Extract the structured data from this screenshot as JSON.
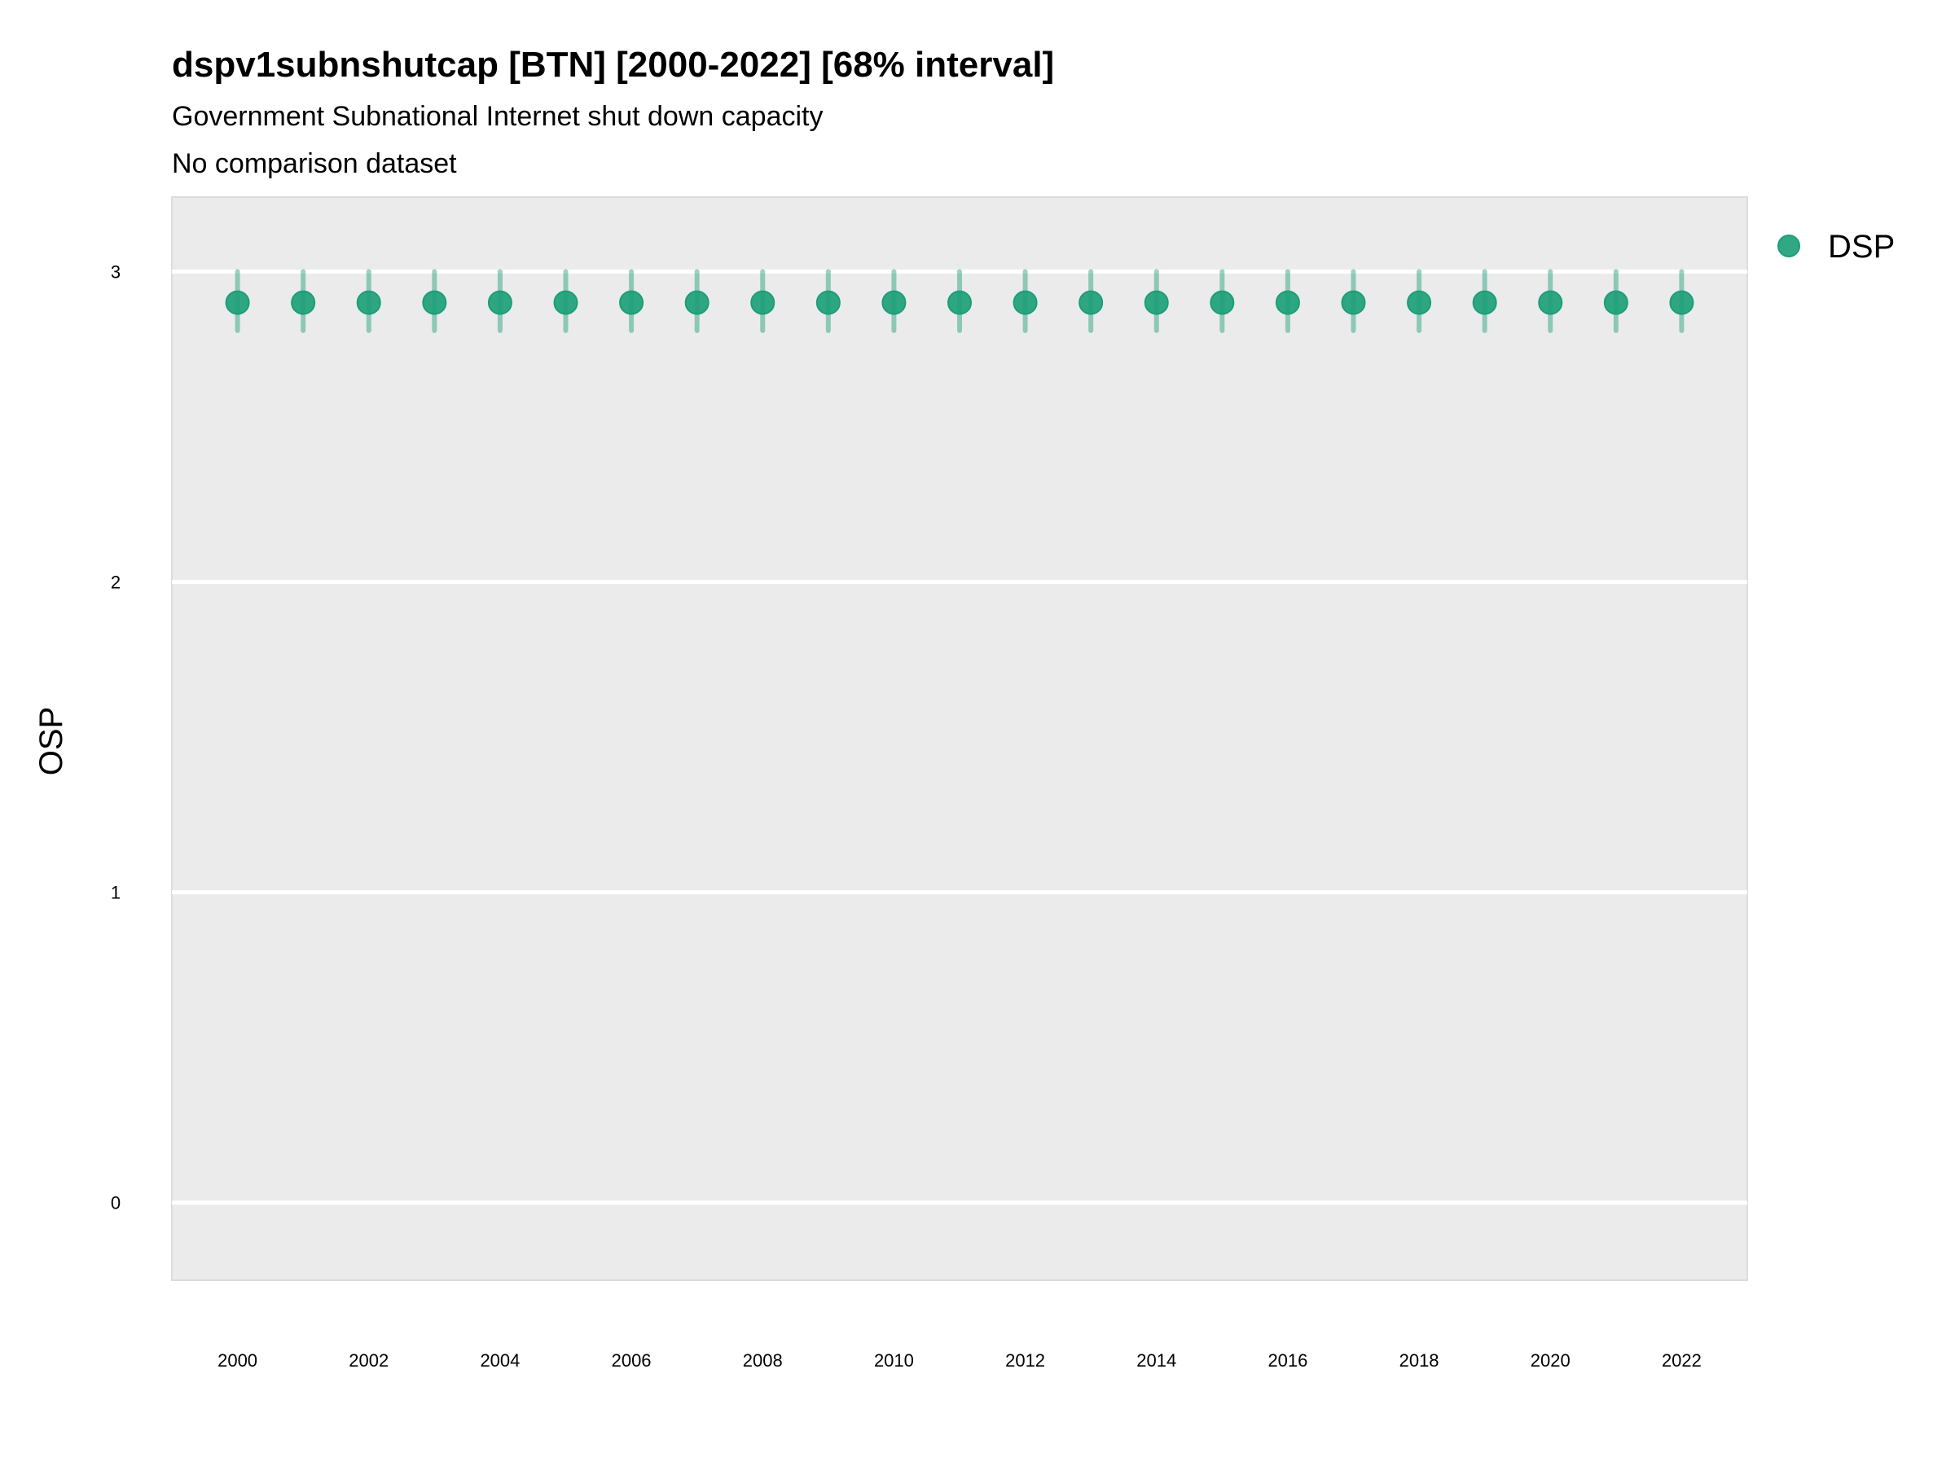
{
  "chart_data": {
    "type": "scatter",
    "title": "dspv1subnshutcap [BTN] [2000-2022] [68% interval]",
    "subtitle": "Government Subnational Internet shut down capacity",
    "subtitle2": "No comparison dataset",
    "xlabel": "",
    "ylabel": "OSP",
    "xlim": [
      1999,
      2023
    ],
    "ylim": [
      -0.25,
      3.24
    ],
    "x_ticks": [
      2000,
      2002,
      2004,
      2006,
      2008,
      2010,
      2012,
      2014,
      2016,
      2018,
      2020,
      2022
    ],
    "x_tick_labels": [
      "2000",
      "2002",
      "2004",
      "2006",
      "2008",
      "2010",
      "2012",
      "2014",
      "2016",
      "2018",
      "2020",
      "2022"
    ],
    "y_ticks": [
      0,
      1,
      2,
      3
    ],
    "y_tick_labels": [
      "0",
      "1",
      "2",
      "3"
    ],
    "grid": true,
    "legend": {
      "placement": "right",
      "entries": [
        "DSP"
      ]
    },
    "colors": {
      "series": "#1b9e77",
      "panel": "#ebebeb",
      "grid": "#ffffff"
    },
    "series": [
      {
        "name": "DSP",
        "x": [
          2000,
          2001,
          2002,
          2003,
          2004,
          2005,
          2006,
          2007,
          2008,
          2009,
          2010,
          2011,
          2012,
          2013,
          2014,
          2015,
          2016,
          2017,
          2018,
          2019,
          2020,
          2021,
          2022
        ],
        "y": [
          2.9,
          2.9,
          2.9,
          2.9,
          2.9,
          2.9,
          2.9,
          2.9,
          2.9,
          2.9,
          2.9,
          2.9,
          2.9,
          2.9,
          2.9,
          2.9,
          2.9,
          2.9,
          2.9,
          2.9,
          2.9,
          2.9,
          2.9
        ],
        "lower": [
          2.81,
          2.81,
          2.81,
          2.81,
          2.81,
          2.81,
          2.81,
          2.81,
          2.81,
          2.81,
          2.81,
          2.81,
          2.81,
          2.81,
          2.81,
          2.81,
          2.81,
          2.81,
          2.81,
          2.81,
          2.81,
          2.81,
          2.81
        ],
        "upper": [
          3.0,
          3.0,
          3.0,
          3.0,
          3.0,
          3.0,
          3.0,
          3.0,
          3.0,
          3.0,
          3.0,
          3.0,
          3.0,
          3.0,
          3.0,
          3.0,
          3.0,
          3.0,
          3.0,
          3.0,
          3.0,
          3.0,
          3.0
        ]
      }
    ]
  }
}
